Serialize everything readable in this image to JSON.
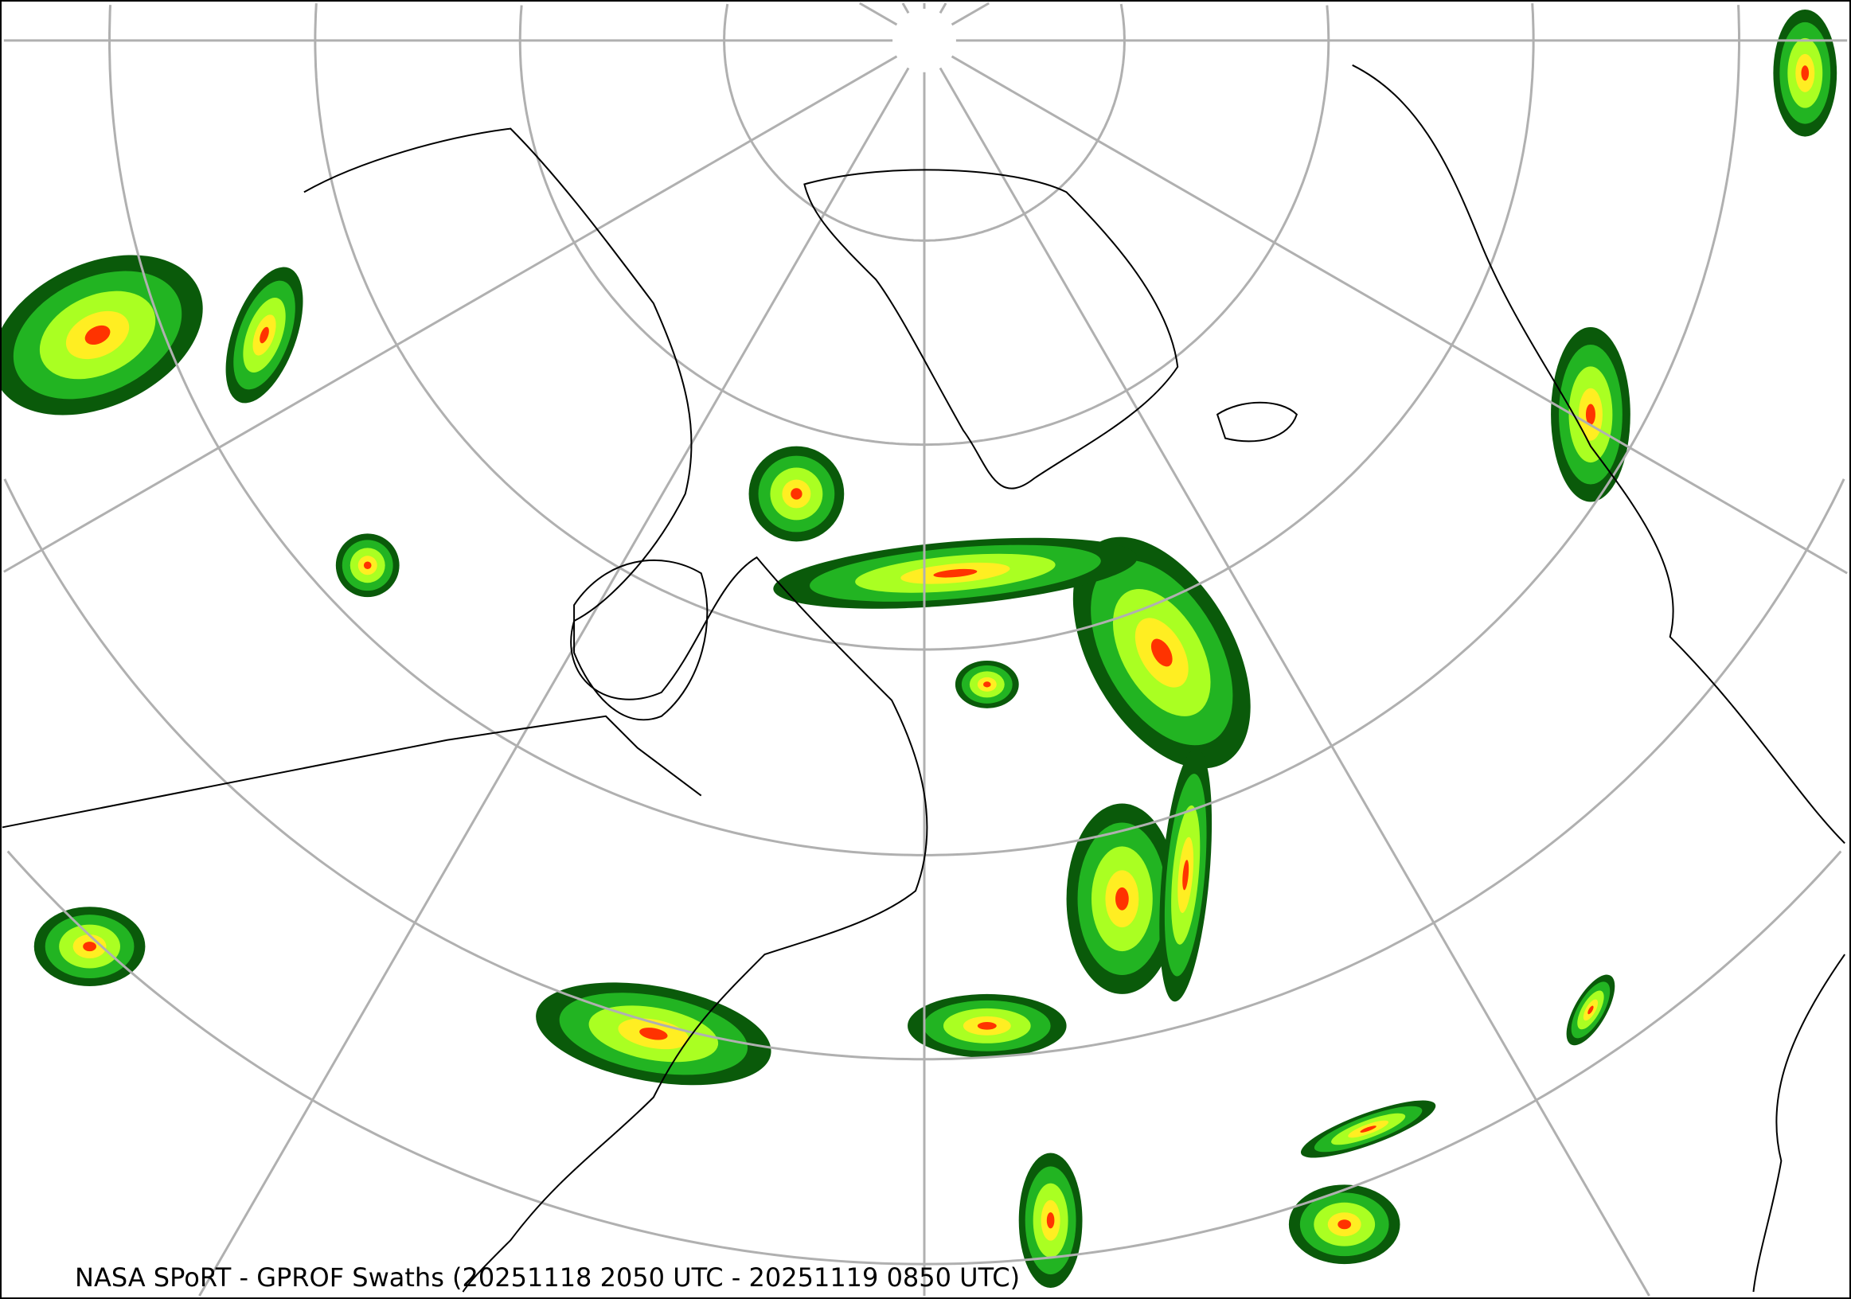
{
  "caption": "NASA SPoRT - GPROF Swaths (20251118 2050 UTC - 20251119 0850 UTC)",
  "colors": {
    "graticule": "#b0b0b0",
    "boundaries": "#000000",
    "precip_light": "#0a5a0a",
    "precip_mid": "#22b422",
    "precip_high": "#aaff22",
    "precip_heavy": "#ffee22",
    "precip_extreme": "#ff3300"
  }
}
